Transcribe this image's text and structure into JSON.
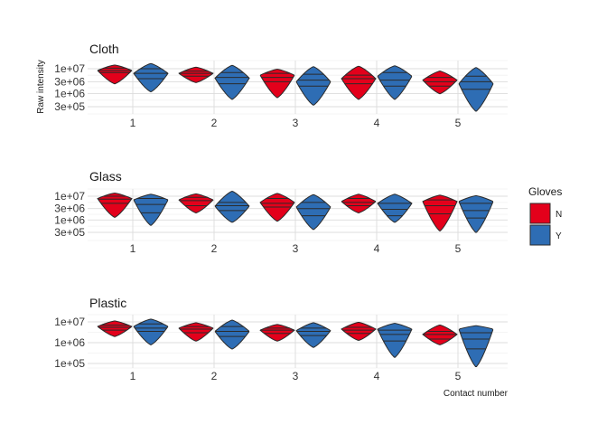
{
  "chart_data": {
    "type": "violin",
    "y_label": "Raw intensity",
    "x_label": "Contact number",
    "y_scale": "log10",
    "grid": true,
    "legend": {
      "title": "Gloves",
      "placement": "right",
      "entries": [
        {
          "key": "N",
          "label": "N",
          "color": "#e3001b"
        },
        {
          "key": "Y",
          "label": "Y",
          "color": "#2e6db4"
        }
      ]
    },
    "x_categories": [
      "1",
      "2",
      "3",
      "4",
      "5"
    ],
    "panels": [
      {
        "title": "Cloth",
        "y_range": [
          200000,
          20000000
        ],
        "y_ticks": [
          {
            "value": 10000000,
            "label": "1e+07"
          },
          {
            "value": 3000000,
            "label": "3e+06"
          },
          {
            "value": 1000000,
            "label": "1e+06"
          },
          {
            "value": 300000,
            "label": "3e+05"
          }
        ],
        "violins": [
          {
            "x": "1",
            "group": "N",
            "min": 2500000,
            "max": 14000000,
            "q1": 7000000,
            "median": 8500000,
            "q3": 10500000,
            "widest": 8500000
          },
          {
            "x": "1",
            "group": "Y",
            "min": 1200000,
            "max": 16000000,
            "q1": 4000000,
            "median": 6500000,
            "q3": 10000000,
            "widest": 6500000
          },
          {
            "x": "2",
            "group": "N",
            "min": 2800000,
            "max": 11500000,
            "q1": 5000000,
            "median": 6500000,
            "q3": 8000000,
            "widest": 6500000
          },
          {
            "x": "2",
            "group": "Y",
            "min": 600000,
            "max": 13500000,
            "q1": 2500000,
            "median": 4500000,
            "q3": 7000000,
            "widest": 4200000
          },
          {
            "x": "3",
            "group": "N",
            "min": 700000,
            "max": 9500000,
            "q1": 3000000,
            "median": 4500000,
            "q3": 6500000,
            "widest": 5500000
          },
          {
            "x": "3",
            "group": "Y",
            "min": 350000,
            "max": 12000000,
            "q1": 2000000,
            "median": 3500000,
            "q3": 6000000,
            "widest": 3000000
          },
          {
            "x": "4",
            "group": "N",
            "min": 600000,
            "max": 12500000,
            "q1": 2500000,
            "median": 4000000,
            "q3": 5500000,
            "widest": 4000000
          },
          {
            "x": "4",
            "group": "Y",
            "min": 600000,
            "max": 13000000,
            "q1": 2000000,
            "median": 3500000,
            "q3": 7000000,
            "widest": 5000000
          },
          {
            "x": "5",
            "group": "N",
            "min": 1000000,
            "max": 8000000,
            "q1": 2000000,
            "median": 3000000,
            "q3": 4500000,
            "widest": 3500000
          },
          {
            "x": "5",
            "group": "Y",
            "min": 200000,
            "max": 11000000,
            "q1": 1500000,
            "median": 3000000,
            "q3": 5000000,
            "widest": 2500000
          }
        ]
      },
      {
        "title": "Glass",
        "y_range": [
          200000,
          20000000
        ],
        "y_ticks": [
          {
            "value": 10000000,
            "label": "1e+07"
          },
          {
            "value": 3000000,
            "label": "3e+06"
          },
          {
            "value": 1000000,
            "label": "1e+06"
          },
          {
            "value": 300000,
            "label": "3e+05"
          }
        ],
        "violins": [
          {
            "x": "1",
            "group": "N",
            "min": 1300000,
            "max": 13500000,
            "q1": 5000000,
            "median": 7500000,
            "q3": 10000000,
            "widest": 8000000
          },
          {
            "x": "1",
            "group": "Y",
            "min": 600000,
            "max": 12000000,
            "q1": 2000000,
            "median": 4500000,
            "q3": 8000000,
            "widest": 7000000
          },
          {
            "x": "2",
            "group": "N",
            "min": 2000000,
            "max": 12500000,
            "q1": 4000000,
            "median": 6500000,
            "q3": 9000000,
            "widest": 7000000
          },
          {
            "x": "2",
            "group": "Y",
            "min": 800000,
            "max": 16000000,
            "q1": 2500000,
            "median": 4000000,
            "q3": 5500000,
            "widest": 3800000
          },
          {
            "x": "3",
            "group": "N",
            "min": 900000,
            "max": 13000000,
            "q1": 3500000,
            "median": 5000000,
            "q3": 8000000,
            "widest": 5500000
          },
          {
            "x": "3",
            "group": "Y",
            "min": 400000,
            "max": 11500000,
            "q1": 1500000,
            "median": 3000000,
            "q3": 5500000,
            "widest": 3500000
          },
          {
            "x": "4",
            "group": "N",
            "min": 2000000,
            "max": 12000000,
            "q1": 4000000,
            "median": 5500000,
            "q3": 8000000,
            "widest": 6000000
          },
          {
            "x": "4",
            "group": "Y",
            "min": 800000,
            "max": 12000000,
            "q1": 1500000,
            "median": 2800000,
            "q3": 5000000,
            "widest": 5000000
          },
          {
            "x": "5",
            "group": "N",
            "min": 350000,
            "max": 11000000,
            "q1": 1800000,
            "median": 4000000,
            "q3": 7000000,
            "widest": 6000000
          },
          {
            "x": "5",
            "group": "Y",
            "min": 300000,
            "max": 10500000,
            "q1": 1200000,
            "median": 2500000,
            "q3": 5000000,
            "widest": 6000000
          }
        ]
      },
      {
        "title": "Plastic",
        "y_range": [
          50000,
          20000000
        ],
        "y_ticks": [
          {
            "value": 10000000,
            "label": "1e+07"
          },
          {
            "value": 1000000,
            "label": "1e+06"
          },
          {
            "value": 100000,
            "label": "1e+05"
          }
        ],
        "violins": [
          {
            "x": "1",
            "group": "N",
            "min": 2000000,
            "max": 11000000,
            "q1": 4000000,
            "median": 5500000,
            "q3": 7000000,
            "widest": 6000000
          },
          {
            "x": "1",
            "group": "Y",
            "min": 800000,
            "max": 13500000,
            "q1": 3500000,
            "median": 5000000,
            "q3": 8000000,
            "widest": 6000000
          },
          {
            "x": "2",
            "group": "N",
            "min": 1200000,
            "max": 9000000,
            "q1": 3000000,
            "median": 4500000,
            "q3": 6000000,
            "widest": 5000000
          },
          {
            "x": "2",
            "group": "Y",
            "min": 500000,
            "max": 12000000,
            "q1": 2000000,
            "median": 3500000,
            "q3": 6000000,
            "widest": 3500000
          },
          {
            "x": "3",
            "group": "N",
            "min": 1200000,
            "max": 7500000,
            "q1": 2800000,
            "median": 4000000,
            "q3": 5000000,
            "widest": 4000000
          },
          {
            "x": "3",
            "group": "Y",
            "min": 600000,
            "max": 9000000,
            "q1": 2200000,
            "median": 3500000,
            "q3": 5000000,
            "widest": 3800000
          },
          {
            "x": "4",
            "group": "N",
            "min": 1300000,
            "max": 9500000,
            "q1": 2800000,
            "median": 4000000,
            "q3": 5500000,
            "widest": 4500000
          },
          {
            "x": "4",
            "group": "Y",
            "min": 200000,
            "max": 8500000,
            "q1": 1200000,
            "median": 2500000,
            "q3": 4000000,
            "widest": 4500000
          },
          {
            "x": "5",
            "group": "N",
            "min": 800000,
            "max": 7000000,
            "q1": 1500000,
            "median": 2500000,
            "q3": 3500000,
            "widest": 2500000
          },
          {
            "x": "5",
            "group": "Y",
            "min": 70000,
            "max": 6500000,
            "q1": 500000,
            "median": 1500000,
            "q3": 3000000,
            "widest": 4500000
          }
        ]
      }
    ]
  }
}
